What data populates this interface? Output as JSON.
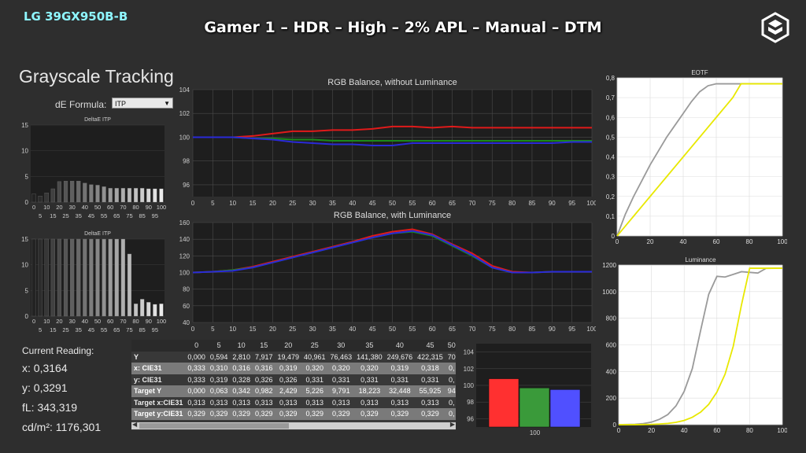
{
  "header": {
    "model": "LG 39GX950B-B",
    "headline": "Gamer 1 – HDR – High – 2% APL – Manual – DTM",
    "logo_icon": "hexagon-cube-logo"
  },
  "page": {
    "title": "Grayscale Tracking"
  },
  "de_formula": {
    "label": "dE Formula:",
    "value": "ITP"
  },
  "current_reading": {
    "title": "Current Reading:",
    "x": "x: 0,3164",
    "y": "y: 0,3291",
    "fl": "fL: 343,319",
    "cdm2": "cd/m²: 1176,301"
  },
  "colors": {
    "red": "#e01a1a",
    "green": "#1a8a1a",
    "blue": "#2a2ad8",
    "yellow": "#e8e800",
    "gray": "#9a9a9a",
    "plot_bg": "#1e1e1e",
    "grid": "#4a4a4a"
  },
  "table": {
    "columns": [
      "",
      "0",
      "5",
      "10",
      "15",
      "20",
      "25",
      "30",
      "35",
      "40",
      "45",
      "50"
    ],
    "rows": [
      {
        "label": "Y",
        "style": "dark",
        "values": [
          "0,000",
          "0,594",
          "2,810",
          "7,917",
          "19,479",
          "40,961",
          "76,463",
          "141,380",
          "249,676",
          "422,315",
          "70"
        ]
      },
      {
        "label": "x: CIE31",
        "style": "light",
        "values": [
          "0,333",
          "0,310",
          "0,316",
          "0,316",
          "0,319",
          "0,320",
          "0,320",
          "0,320",
          "0,319",
          "0,318",
          "0,"
        ]
      },
      {
        "label": "y: CIE31",
        "style": "dark",
        "values": [
          "0,333",
          "0,319",
          "0,328",
          "0,326",
          "0,326",
          "0,331",
          "0,331",
          "0,331",
          "0,331",
          "0,331",
          "0,"
        ]
      },
      {
        "label": "Target Y",
        "style": "light",
        "values": [
          "0,000",
          "0,063",
          "0,342",
          "0,982",
          "2,429",
          "5,226",
          "9,791",
          "18,223",
          "32,448",
          "55,925",
          "94"
        ]
      },
      {
        "label": "Target x:CIE31",
        "style": "dark",
        "values": [
          "0,313",
          "0,313",
          "0,313",
          "0,313",
          "0,313",
          "0,313",
          "0,313",
          "0,313",
          "0,313",
          "0,313",
          "0,"
        ]
      },
      {
        "label": "Target y:CIE31",
        "style": "light",
        "values": [
          "0,329",
          "0,329",
          "0,329",
          "0,329",
          "0,329",
          "0,329",
          "0,329",
          "0,329",
          "0,329",
          "0,329",
          "0,"
        ]
      }
    ]
  },
  "chart_data": [
    {
      "id": "deltae1",
      "type": "bar",
      "title": "DeltaE ITP",
      "ylim": [
        0,
        15
      ],
      "yticks": [
        0,
        5,
        10,
        15
      ],
      "xticks_top": [
        "0",
        "10",
        "20",
        "30",
        "40",
        "50",
        "60",
        "70",
        "80",
        "90",
        "100"
      ],
      "xticks_bottom": [
        "5",
        "15",
        "25",
        "35",
        "45",
        "55",
        "65",
        "75",
        "85",
        "95"
      ],
      "categories": [
        "0",
        "5",
        "10",
        "15",
        "20",
        "25",
        "30",
        "35",
        "40",
        "45",
        "50",
        "55",
        "60",
        "65",
        "70",
        "75",
        "80",
        "85",
        "90",
        "95",
        "100"
      ],
      "values": [
        1.6,
        1.2,
        1.8,
        2.6,
        4.0,
        4.1,
        4.1,
        4.1,
        3.7,
        3.4,
        3.3,
        3.0,
        2.7,
        2.7,
        2.7,
        2.7,
        2.7,
        2.7,
        2.6,
        2.6,
        2.6
      ]
    },
    {
      "id": "deltae2",
      "type": "bar",
      "title": "DeltaE ITP",
      "ylim": [
        0,
        15
      ],
      "yticks": [
        0,
        5,
        10,
        15
      ],
      "clipped_top": 15,
      "xticks_top": [
        "0",
        "10",
        "20",
        "30",
        "40",
        "50",
        "60",
        "70",
        "80",
        "90",
        "100"
      ],
      "xticks_bottom": [
        "5",
        "15",
        "25",
        "35",
        "45",
        "55",
        "65",
        "75",
        "85",
        "95"
      ],
      "categories": [
        "0",
        "5",
        "10",
        "15",
        "20",
        "25",
        "30",
        "35",
        "40",
        "45",
        "50",
        "55",
        "60",
        "65",
        "70",
        "75",
        "80",
        "85",
        "90",
        "95",
        "100"
      ],
      "values": [
        15,
        15,
        15,
        15,
        15,
        15,
        15,
        15,
        15,
        15,
        15,
        15,
        15,
        15,
        15,
        12.1,
        2.4,
        3.3,
        2.7,
        2.3,
        2.4
      ]
    },
    {
      "id": "rgb1",
      "type": "line",
      "title": "RGB Balance, without Luminance",
      "ylim": [
        95,
        104
      ],
      "yticks": [
        96,
        98,
        100,
        102,
        104
      ],
      "x": [
        0,
        5,
        10,
        15,
        20,
        25,
        30,
        35,
        40,
        45,
        50,
        55,
        60,
        65,
        70,
        75,
        80,
        85,
        90,
        95,
        100
      ],
      "xticks": [
        "0",
        "5",
        "10",
        "15",
        "20",
        "25",
        "30",
        "35",
        "40",
        "45",
        "50",
        "55",
        "60",
        "65",
        "70",
        "75",
        "80",
        "85",
        "90",
        "95",
        "100"
      ],
      "series": [
        {
          "color": "#e01a1a",
          "values": [
            100,
            100,
            100,
            100.1,
            100.3,
            100.5,
            100.5,
            100.6,
            100.6,
            100.7,
            100.9,
            100.9,
            100.8,
            100.9,
            100.8,
            100.8,
            100.8,
            100.8,
            100.8,
            100.8,
            100.8
          ]
        },
        {
          "color": "#1a8a1a",
          "values": [
            100,
            100,
            100,
            99.9,
            99.9,
            99.8,
            99.8,
            99.7,
            99.7,
            99.7,
            99.7,
            99.7,
            99.7,
            99.7,
            99.7,
            99.7,
            99.7,
            99.7,
            99.7,
            99.7,
            99.7
          ]
        },
        {
          "color": "#2a2ad8",
          "values": [
            100,
            100,
            100,
            99.9,
            99.8,
            99.6,
            99.5,
            99.4,
            99.4,
            99.3,
            99.3,
            99.5,
            99.5,
            99.5,
            99.5,
            99.5,
            99.5,
            99.5,
            99.5,
            99.6,
            99.6
          ]
        }
      ]
    },
    {
      "id": "rgb2",
      "type": "line",
      "title": "RGB Balance, with Luminance",
      "ylim": [
        40,
        160
      ],
      "yticks": [
        40,
        60,
        80,
        100,
        120,
        140,
        160
      ],
      "x": [
        0,
        5,
        10,
        15,
        20,
        25,
        30,
        35,
        40,
        45,
        50,
        55,
        60,
        65,
        70,
        75,
        80,
        85,
        90,
        95,
        100
      ],
      "xticks": [
        "0",
        "5",
        "10",
        "15",
        "20",
        "25",
        "30",
        "35",
        "40",
        "45",
        "50",
        "55",
        "60",
        "65",
        "70",
        "75",
        "80",
        "85",
        "90",
        "95",
        "100"
      ],
      "series": [
        {
          "color": "#e01a1a",
          "values": [
            100,
            101,
            103,
            107,
            113,
            119,
            125,
            131,
            137,
            144,
            149,
            152,
            146,
            134,
            123,
            108,
            101,
            100,
            101,
            101,
            101
          ]
        },
        {
          "color": "#1a8a1a",
          "values": [
            100,
            101,
            103,
            106,
            112,
            118,
            124,
            130,
            136,
            142,
            147,
            149,
            144,
            132,
            120,
            106,
            100,
            100,
            101,
            101,
            101
          ]
        },
        {
          "color": "#2a2ad8",
          "values": [
            100,
            101,
            102,
            106,
            112,
            118,
            124,
            130,
            136,
            142,
            147,
            150,
            145,
            133,
            121,
            106,
            100,
            100,
            101,
            101,
            101
          ]
        }
      ]
    },
    {
      "id": "rgbbars",
      "type": "bar",
      "ylim": [
        95,
        105
      ],
      "yticks": [
        96,
        98,
        100,
        102,
        104
      ],
      "categories": [
        "100"
      ],
      "series": [
        {
          "color": "#ff3030",
          "values": [
            100.8
          ]
        },
        {
          "color": "#3a9a3a",
          "values": [
            99.7
          ]
        },
        {
          "color": "#5050ff",
          "values": [
            99.5
          ]
        }
      ]
    },
    {
      "id": "eotf",
      "type": "line",
      "title": "EOTF",
      "ylim": [
        0,
        0.8
      ],
      "yticks": [
        0,
        0.1,
        0.2,
        0.3,
        0.4,
        0.5,
        0.6,
        0.7,
        0.8
      ],
      "ytick_labels": [
        "0",
        "0,1",
        "0,2",
        "0,3",
        "0,4",
        "0,5",
        "0,6",
        "0,7",
        "0,8"
      ],
      "xlim": [
        0,
        100
      ],
      "xticks": [
        "0",
        "20",
        "40",
        "60",
        "80",
        "100"
      ],
      "series": [
        {
          "color": "#9a9a9a",
          "x": [
            0,
            5,
            10,
            15,
            20,
            25,
            30,
            35,
            40,
            45,
            50,
            55,
            60,
            65,
            70,
            75,
            80,
            85,
            90,
            95,
            100
          ],
          "values": [
            0,
            0.11,
            0.2,
            0.28,
            0.36,
            0.43,
            0.5,
            0.56,
            0.62,
            0.68,
            0.73,
            0.76,
            0.77,
            0.77,
            0.77,
            0.77,
            0.77,
            0.77,
            0.77,
            0.77,
            0.77
          ]
        },
        {
          "color": "#e8e800",
          "x": [
            0,
            5,
            10,
            15,
            20,
            25,
            30,
            35,
            40,
            45,
            50,
            55,
            60,
            65,
            70,
            75,
            80,
            85,
            90,
            95,
            100
          ],
          "values": [
            0,
            0.05,
            0.1,
            0.15,
            0.2,
            0.25,
            0.3,
            0.35,
            0.4,
            0.45,
            0.5,
            0.55,
            0.6,
            0.65,
            0.7,
            0.77,
            0.77,
            0.77,
            0.77,
            0.77,
            0.77
          ]
        }
      ]
    },
    {
      "id": "luminance",
      "type": "line",
      "title": "Luminance",
      "ylim": [
        0,
        1200
      ],
      "yticks": [
        0,
        200,
        400,
        600,
        800,
        1000,
        1200
      ],
      "xlim": [
        0,
        100
      ],
      "xticks": [
        "0",
        "20",
        "40",
        "60",
        "80",
        "100"
      ],
      "series": [
        {
          "color": "#9a9a9a",
          "x": [
            0,
            5,
            10,
            15,
            20,
            25,
            30,
            35,
            40,
            45,
            50,
            55,
            60,
            65,
            70,
            75,
            80,
            85,
            90,
            95,
            100
          ],
          "values": [
            0,
            1,
            3,
            8,
            19,
            41,
            76,
            141,
            250,
            422,
            705,
            980,
            1115,
            1110,
            1130,
            1150,
            1145,
            1140,
            1175,
            1176,
            1176
          ]
        },
        {
          "color": "#e8e800",
          "x": [
            0,
            5,
            10,
            15,
            20,
            25,
            30,
            35,
            40,
            45,
            50,
            55,
            60,
            65,
            70,
            75,
            80,
            85,
            90,
            95,
            100
          ],
          "values": [
            0,
            0.06,
            0.34,
            0.98,
            2.4,
            5.2,
            9.8,
            18,
            32,
            56,
            94,
            153,
            245,
            380,
            590,
            900,
            1176,
            1176,
            1176,
            1176,
            1176
          ]
        }
      ]
    }
  ]
}
